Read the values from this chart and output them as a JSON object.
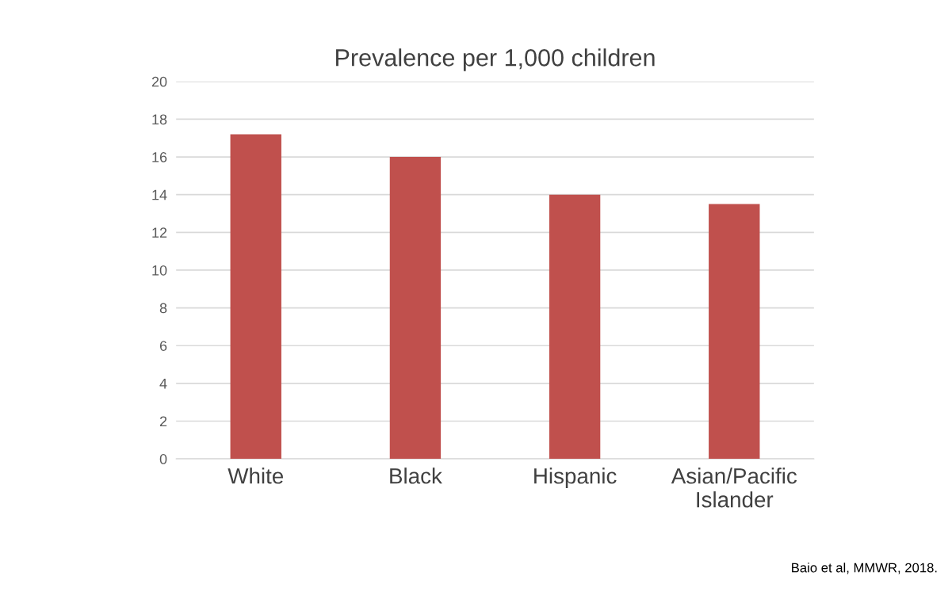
{
  "chart_data": {
    "type": "bar",
    "title": "Prevalence per 1,000 children",
    "categories": [
      "White",
      "Black",
      "Hispanic",
      "Asian/Pacific\nIslander"
    ],
    "values": [
      17.2,
      16.0,
      14.0,
      13.5
    ],
    "color": "#c0504d",
    "ylim": [
      0,
      20
    ],
    "yticks": [
      0,
      2,
      4,
      6,
      8,
      10,
      12,
      14,
      16,
      18,
      20
    ],
    "grid": "y",
    "annotations": [
      "Baio et al, MMWR, 2018."
    ]
  }
}
